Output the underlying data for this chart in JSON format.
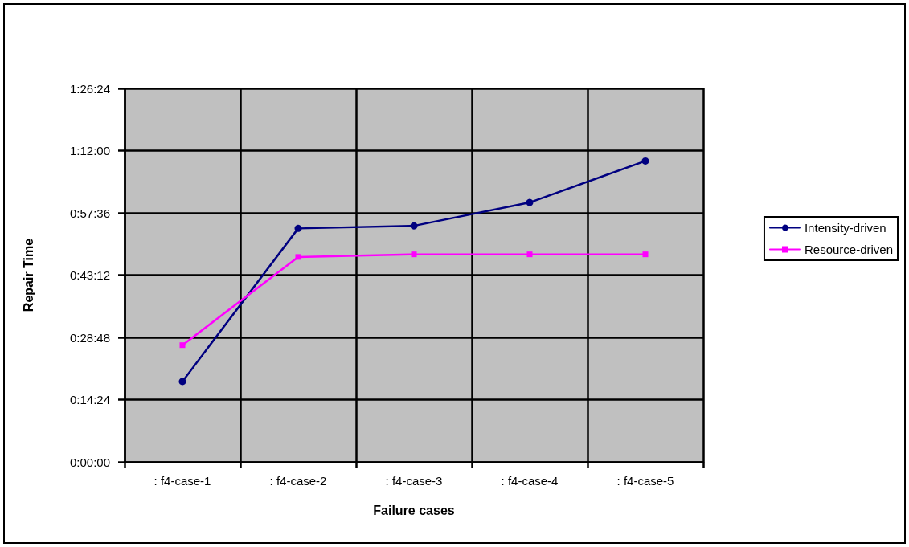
{
  "chart_data": {
    "type": "line",
    "xlabel": "Failure cases",
    "ylabel": "Repair Time",
    "categories": [
      ": f4-case-1",
      ": f4-case-2",
      ": f4-case-3",
      ": f4-case-4",
      ": f4-case-5"
    ],
    "series": [
      {
        "name": "Intensity-driven",
        "color": "#000080",
        "marker": "circle",
        "values": [
          0.31,
          0.9,
          0.91,
          1.0,
          1.16
        ]
      },
      {
        "name": "Resource-driven",
        "color": "#ff00ff",
        "marker": "square",
        "values": [
          0.45,
          0.79,
          0.8,
          0.8,
          0.8
        ]
      }
    ],
    "ylim": [
      0,
      1.44
    ],
    "yticks": [
      {
        "value": 0,
        "label": "0:00:00"
      },
      {
        "value": 0.24,
        "label": "0:14:24"
      },
      {
        "value": 0.48,
        "label": "0:28:48"
      },
      {
        "value": 0.72,
        "label": "0:43:12"
      },
      {
        "value": 0.96,
        "label": "0:57:36"
      },
      {
        "value": 1.2,
        "label": "1:12:00"
      },
      {
        "value": 1.44,
        "label": "1:26:24"
      }
    ],
    "grid": true,
    "legend": "right",
    "line_style": "solid"
  }
}
